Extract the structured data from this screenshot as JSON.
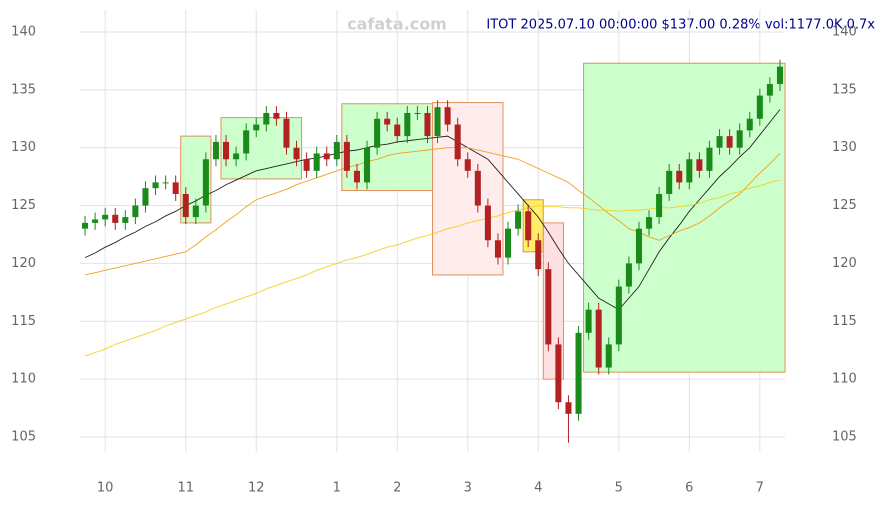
{
  "chart_data": {
    "type": "candlestick",
    "title": "ITOT 2025.07.10 00:00:00 $137.00 0.28% vol:1177.0K 0.7x",
    "watermark": "cafata.com",
    "categories": [
      null,
      null,
      "10",
      null,
      null,
      null,
      null,
      null,
      null,
      null,
      "11",
      null,
      null,
      null,
      null,
      null,
      null,
      "12",
      null,
      null,
      null,
      null,
      null,
      null,
      null,
      "1",
      null,
      null,
      null,
      null,
      null,
      "2",
      null,
      null,
      null,
      null,
      null,
      null,
      "3",
      null,
      null,
      null,
      null,
      null,
      null,
      "4",
      null,
      null,
      null,
      null,
      null,
      null,
      null,
      "5",
      null,
      null,
      null,
      null,
      null,
      null,
      "6",
      null,
      null,
      null,
      null,
      null,
      null,
      "7",
      null,
      null
    ],
    "open": [
      123,
      123.5,
      123.8,
      124.2,
      123.5,
      124,
      125,
      126.5,
      127,
      127,
      126,
      124,
      125,
      129,
      130.5,
      129,
      129.5,
      131.5,
      132,
      133,
      132.5,
      130,
      129,
      128,
      129.5,
      129,
      130.5,
      128,
      127,
      130,
      132.5,
      132,
      131,
      133,
      133,
      131,
      133.5,
      132,
      129,
      128,
      125,
      122,
      120.5,
      123,
      124.5,
      122,
      119.5,
      113,
      108,
      107,
      114,
      116,
      111,
      113,
      118,
      120,
      123,
      124,
      126,
      128,
      127,
      129,
      128,
      130,
      131,
      130,
      131.5,
      132.5,
      134.5,
      135.5
    ],
    "high": [
      124.1,
      124.4,
      124.8,
      124.8,
      124.6,
      125.6,
      127.1,
      127.6,
      127.6,
      127.6,
      126.6,
      125.6,
      129.6,
      131.1,
      131.1,
      130.1,
      132.1,
      132.6,
      133.6,
      133.6,
      133.1,
      130.6,
      129.6,
      130.1,
      130.1,
      131.1,
      131.1,
      128.6,
      130.6,
      133.1,
      133.1,
      132.6,
      133.6,
      133.6,
      133.6,
      134.1,
      134.1,
      132.6,
      129.6,
      128.6,
      125.6,
      122.6,
      123.6,
      125.1,
      125.1,
      122.6,
      120.1,
      113.6,
      108.6,
      114.6,
      116.6,
      116.6,
      113.6,
      118.6,
      120.6,
      123.6,
      124.6,
      126.6,
      128.6,
      128.6,
      129.6,
      129.6,
      130.6,
      131.6,
      131.6,
      132.1,
      133.1,
      135.1,
      136.1,
      137.6
    ],
    "low": [
      122.4,
      122.9,
      123.2,
      122.9,
      122.9,
      123.4,
      124.4,
      125.9,
      126.4,
      125.4,
      123.4,
      123.4,
      124.4,
      128.4,
      128.4,
      128.4,
      128.9,
      130.9,
      131.4,
      131.9,
      129.4,
      128.4,
      127.4,
      127.4,
      128.4,
      128.4,
      127.4,
      126.4,
      126.4,
      129.4,
      131.4,
      130.4,
      130.4,
      132.4,
      130.4,
      130.4,
      131.4,
      128.4,
      127.4,
      124.4,
      121.4,
      119.9,
      119.9,
      122.4,
      121.4,
      118.9,
      112.4,
      107.4,
      104.5,
      106.4,
      113.4,
      110.4,
      110.4,
      112.4,
      117.4,
      119.4,
      122.4,
      123.4,
      125.4,
      126.4,
      126.4,
      127.4,
      127.4,
      129.4,
      129.4,
      129.4,
      130.9,
      131.9,
      133.9,
      134.9
    ],
    "close": [
      123.5,
      123.8,
      124.2,
      123.5,
      124,
      125,
      126.5,
      127,
      127,
      126,
      124,
      125,
      129,
      130.5,
      129,
      129.5,
      131.5,
      132,
      133,
      132.5,
      130,
      129,
      128,
      129.5,
      129,
      130.5,
      128,
      127,
      130,
      132.5,
      132,
      131,
      133,
      133,
      131,
      133.5,
      132,
      129,
      128,
      125,
      122,
      120.5,
      123,
      124.5,
      122,
      119.5,
      113,
      108,
      107,
      114,
      116,
      111,
      113,
      118,
      120,
      123,
      124,
      126,
      128,
      127,
      129,
      128,
      130,
      131,
      130,
      131.5,
      132.5,
      134.5,
      135.5,
      137
    ],
    "up_color": "#1a8a1a",
    "down_color": "#b22222",
    "lines": [
      {
        "color": "#222222",
        "values": [
          120.5,
          120.9,
          121.4,
          121.8,
          122.3,
          122.7,
          123.2,
          123.6,
          124.1,
          124.5,
          125,
          125.4,
          125.9,
          126.3,
          126.8,
          127.2,
          127.6,
          128,
          128.2,
          128.4,
          128.6,
          128.8,
          129,
          129.1,
          129.3,
          129.5,
          129.7,
          129.8,
          130,
          130.2,
          130.3,
          130.5,
          130.6,
          130.7,
          130.8,
          130.9,
          131,
          130.5,
          130,
          129.5,
          129,
          128,
          127,
          126,
          125,
          124,
          122.7,
          121.3,
          120,
          119,
          118,
          117,
          116.5,
          116,
          117,
          118,
          119.5,
          121,
          122.2,
          123.3,
          124.5,
          125.5,
          126.5,
          127.5,
          128.3,
          129.2,
          130,
          131.1,
          132.2,
          133.3
        ]
      },
      {
        "color": "#f0a020",
        "values": [
          119,
          119.2,
          119.4,
          119.6,
          119.8,
          120,
          120.2,
          120.4,
          120.6,
          120.8,
          121,
          121.6,
          122.3,
          122.9,
          123.6,
          124.2,
          124.9,
          125.5,
          125.8,
          126.1,
          126.4,
          126.8,
          127.1,
          127.4,
          127.7,
          128,
          128.3,
          128.5,
          128.8,
          129,
          129.3,
          129.5,
          129.6,
          129.7,
          129.8,
          129.9,
          130,
          130,
          130,
          129.8,
          129.6,
          129.4,
          129.2,
          129,
          128.6,
          128.2,
          127.8,
          127.4,
          127,
          126.3,
          125.7,
          125,
          124.3,
          123.7,
          123,
          122.7,
          122.3,
          122,
          122.4,
          122.8,
          123.1,
          123.5,
          124.1,
          124.8,
          125.4,
          126,
          126.9,
          127.8,
          128.6,
          129.5
        ]
      },
      {
        "color": "#f5d020",
        "values": [
          112,
          112.3,
          112.6,
          113,
          113.3,
          113.6,
          113.9,
          114.2,
          114.6,
          114.9,
          115.2,
          115.5,
          115.8,
          116.2,
          116.5,
          116.8,
          117.1,
          117.4,
          117.8,
          118.1,
          118.4,
          118.7,
          119,
          119.4,
          119.7,
          120,
          120.3,
          120.5,
          120.8,
          121.1,
          121.4,
          121.6,
          121.9,
          122.2,
          122.4,
          122.7,
          123,
          123.2,
          123.5,
          123.7,
          123.9,
          124.1,
          124.4,
          124.6,
          124.8,
          125,
          124.9,
          124.9,
          124.8,
          124.8,
          124.7,
          124.6,
          124.6,
          124.5,
          124.6,
          124.6,
          124.7,
          124.8,
          124.8,
          124.9,
          125,
          125.2,
          125.5,
          125.7,
          126,
          126.2,
          126.5,
          126.7,
          127,
          127.2
        ]
      }
    ],
    "boxes": [
      {
        "start": 10,
        "end": 12,
        "low": 123.5,
        "high": 131,
        "color": "#ccffcc"
      },
      {
        "start": 14,
        "end": 21,
        "low": 127.3,
        "high": 132.6,
        "color": "#ccffcc"
      },
      {
        "start": 26,
        "end": 35,
        "low": 126.3,
        "high": 133.8,
        "color": "#ccffcc"
      },
      {
        "start": 35,
        "end": 41,
        "low": 119,
        "high": 133.9,
        "color": "#ffecec"
      },
      {
        "start": 44,
        "end": 45,
        "low": 121,
        "high": 125.5,
        "color": "#ffee66"
      },
      {
        "start": 46,
        "end": 47,
        "low": 110,
        "high": 123.5,
        "color": "#ffe0e0"
      },
      {
        "start": 50,
        "end": 69,
        "low": 110.6,
        "high": 137.3,
        "color": "#ccffcc"
      }
    ],
    "ylim": [
      103.7,
      141.9
    ],
    "yticks": [
      105,
      110,
      115,
      120,
      125,
      130,
      135,
      140
    ],
    "grid": true
  }
}
